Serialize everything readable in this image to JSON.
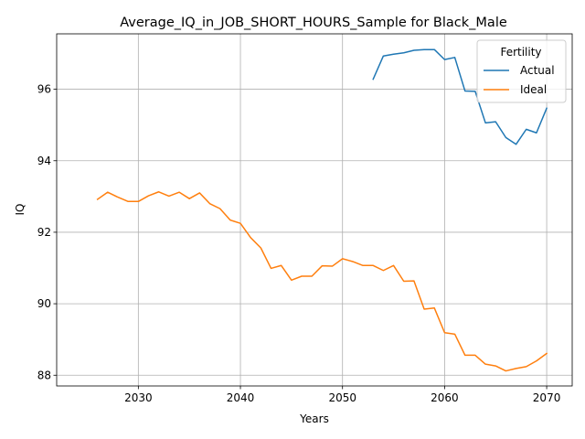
{
  "chart_data": {
    "type": "line",
    "title": "Average_IQ_in_JOB_SHORT_HOURS_Sample for Black_Male",
    "xlabel": "Years",
    "ylabel": "IQ",
    "xlim": [
      2022,
      2072.5
    ],
    "ylim": [
      87.7,
      97.55
    ],
    "xticks": [
      2030,
      2040,
      2050,
      2060,
      2070
    ],
    "yticks": [
      88,
      90,
      92,
      94,
      96
    ],
    "grid": true,
    "legend": {
      "title": "Fertility",
      "placement": "top-right"
    },
    "series": [
      {
        "name": "Actual",
        "color": "#1f77b4",
        "x": [
          2053,
          2054,
          2055,
          2056,
          2057,
          2058,
          2059,
          2060,
          2061,
          2062,
          2063,
          2064,
          2065,
          2066,
          2067,
          2068,
          2069,
          2070
        ],
        "y": [
          96.28,
          96.93,
          96.98,
          97.02,
          97.09,
          97.11,
          97.11,
          96.83,
          96.89,
          95.95,
          95.94,
          95.06,
          95.09,
          94.65,
          94.46,
          94.88,
          94.78,
          95.47
        ]
      },
      {
        "name": "Ideal",
        "color": "#ff7f0e",
        "x": [
          2026,
          2027,
          2028,
          2029,
          2030,
          2031,
          2032,
          2033,
          2034,
          2035,
          2036,
          2037,
          2038,
          2039,
          2040,
          2041,
          2042,
          2043,
          2044,
          2045,
          2046,
          2047,
          2048,
          2049,
          2050,
          2051,
          2052,
          2053,
          2054,
          2055,
          2056,
          2057,
          2058,
          2059,
          2060,
          2061,
          2062,
          2063,
          2064,
          2065,
          2066,
          2067,
          2068,
          2069,
          2070
        ],
        "y": [
          92.92,
          93.12,
          92.98,
          92.86,
          92.86,
          93.02,
          93.13,
          93.01,
          93.12,
          92.94,
          93.1,
          92.8,
          92.66,
          92.34,
          92.25,
          91.85,
          91.56,
          90.99,
          91.07,
          90.66,
          90.77,
          90.77,
          91.06,
          91.05,
          91.26,
          91.18,
          91.07,
          91.07,
          90.93,
          91.07,
          90.63,
          90.64,
          89.85,
          89.88,
          89.19,
          89.15,
          88.56,
          88.56,
          88.31,
          88.26,
          88.12,
          88.19,
          88.24,
          88.4,
          88.61
        ]
      }
    ]
  }
}
